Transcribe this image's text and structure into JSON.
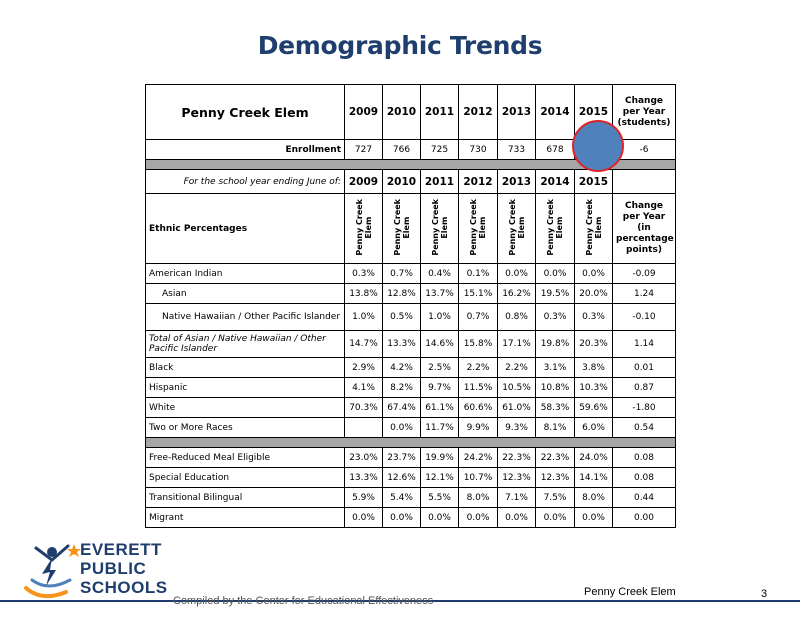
{
  "page": {
    "title": "Demographic Trends",
    "school": "Penny Creek Elem",
    "page_number": "3",
    "credit": "Compiled by the Center for Educational Effectiveness"
  },
  "logo": {
    "lines": [
      "EVERETT",
      "PUBLIC",
      "SCHOOLS"
    ],
    "colors": {
      "navy": "#1f3e6e",
      "orange": "#f7941d",
      "figure": "#1f3e6e"
    }
  },
  "header": {
    "school": "Penny Creek Elem",
    "years": [
      "2009",
      "2010",
      "2011",
      "2012",
      "2013",
      "2014",
      "2015"
    ],
    "change_label": "Change per Year (students)"
  },
  "enrollment": {
    "label": "Enrollment",
    "values": [
      "727",
      "766",
      "725",
      "730",
      "733",
      "678",
      ""
    ],
    "change": "-6"
  },
  "ethnic_header": {
    "school_year_label": "For the school year ending June of:",
    "years": [
      "2009",
      "2010",
      "2011",
      "2012",
      "2013",
      "2014",
      "2015"
    ],
    "row_label": "Ethnic Percentages",
    "column_label": "Penny Creek\nElem",
    "change_label": "Change per Year (in percentage points)"
  },
  "ethnic_rows": [
    {
      "label": "American Indian",
      "values": [
        "0.3%",
        "0.7%",
        "0.4%",
        "0.1%",
        "0.0%",
        "0.0%",
        "0.0%"
      ],
      "change": "-0.09"
    },
    {
      "label": "Asian",
      "values": [
        "13.8%",
        "12.8%",
        "13.7%",
        "15.1%",
        "16.2%",
        "19.5%",
        "20.0%"
      ],
      "change": "1.24"
    },
    {
      "label": "Native Hawaiian / Other Pacific Islander",
      "values": [
        "1.0%",
        "0.5%",
        "1.0%",
        "0.7%",
        "0.8%",
        "0.3%",
        "0.3%"
      ],
      "change": "-0.10"
    },
    {
      "label": "Total of Asian / Native Hawaiian / Other Pacific Islander",
      "values": [
        "14.7%",
        "13.3%",
        "14.6%",
        "15.8%",
        "17.1%",
        "19.8%",
        "20.3%"
      ],
      "change": "1.14"
    },
    {
      "label": "Black",
      "values": [
        "2.9%",
        "4.2%",
        "2.5%",
        "2.2%",
        "2.2%",
        "3.1%",
        "3.8%"
      ],
      "change": "0.01"
    },
    {
      "label": "Hispanic",
      "values": [
        "4.1%",
        "8.2%",
        "9.7%",
        "11.5%",
        "10.5%",
        "10.8%",
        "10.3%"
      ],
      "change": "0.87"
    },
    {
      "label": "White",
      "values": [
        "70.3%",
        "67.4%",
        "61.1%",
        "60.6%",
        "61.0%",
        "58.3%",
        "59.6%"
      ],
      "change": "-1.80"
    },
    {
      "label": "Two or More Races",
      "values": [
        "",
        "0.0%",
        "11.7%",
        "9.9%",
        "9.3%",
        "8.1%",
        "6.0%"
      ],
      "change": "0.54"
    }
  ],
  "program_rows": [
    {
      "label": "Free-Reduced Meal Eligible",
      "values": [
        "23.0%",
        "23.7%",
        "19.9%",
        "24.2%",
        "22.3%",
        "22.3%",
        "24.0%"
      ],
      "change": "0.08"
    },
    {
      "label": "Special Education",
      "values": [
        "13.3%",
        "12.6%",
        "12.1%",
        "10.7%",
        "12.3%",
        "12.3%",
        "14.1%"
      ],
      "change": "0.08"
    },
    {
      "label": "Transitional Bilingual",
      "values": [
        "5.9%",
        "5.4%",
        "5.5%",
        "8.0%",
        "7.1%",
        "7.5%",
        "8.0%"
      ],
      "change": "0.44"
    },
    {
      "label": "Migrant",
      "values": [
        "0.0%",
        "0.0%",
        "0.0%",
        "0.0%",
        "0.0%",
        "0.0%",
        "0.0%"
      ],
      "change": "0.00"
    }
  ],
  "marker": {
    "fill": "#4f81bd",
    "outline": "#e0222b"
  }
}
